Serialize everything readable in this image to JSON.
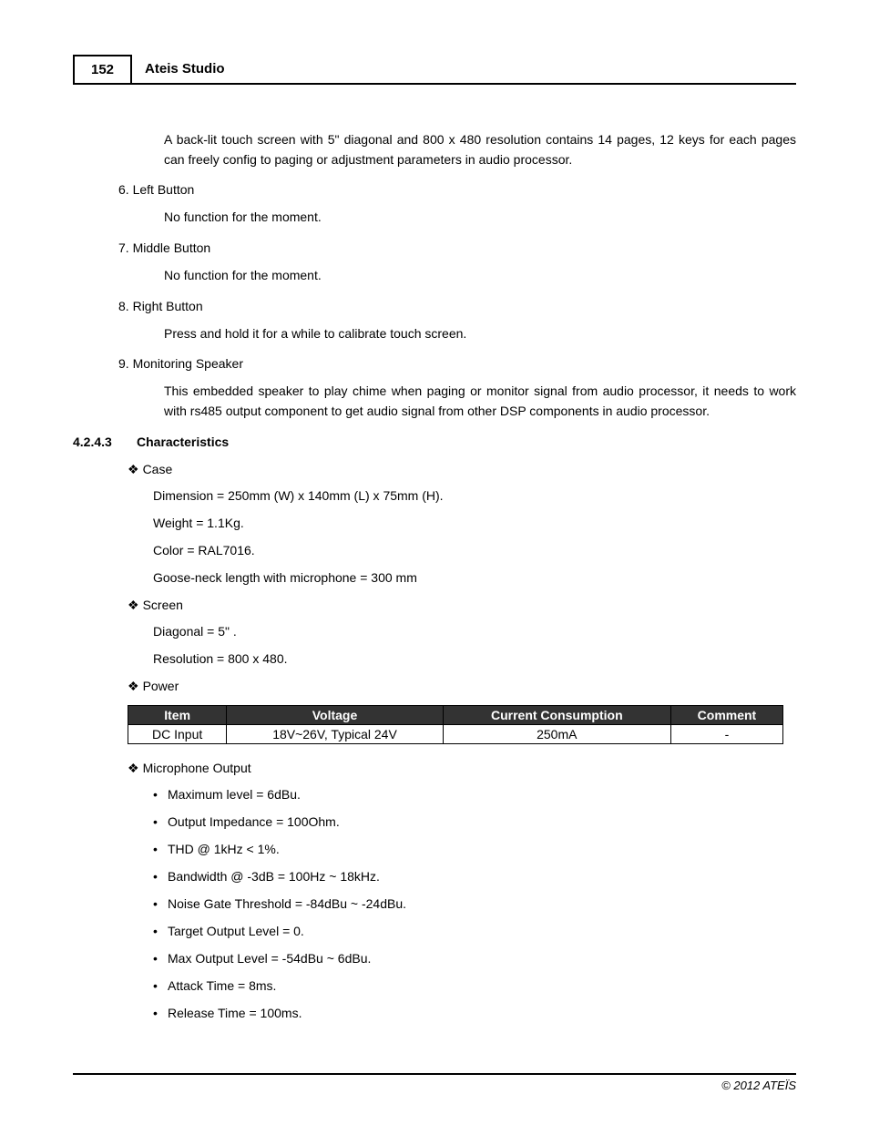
{
  "header": {
    "page_number": "152",
    "title": "Ateis Studio"
  },
  "intro_para": "A back-lit touch screen with 5\" diagonal and 800 x 480 resolution contains 14 pages, 12 keys for each pages can freely config to paging or adjustment parameters in audio processor.",
  "numbered_items": [
    {
      "num": "6.",
      "title": "Left Button",
      "body": "No function for the moment."
    },
    {
      "num": "7.",
      "title": "Middle Button",
      "body": "No function for the moment."
    },
    {
      "num": "8.",
      "title": "Right Button",
      "body": "Press and hold it for a while to calibrate touch screen."
    },
    {
      "num": "9.",
      "title": "Monitoring Speaker",
      "body": "This embedded speaker to play chime when paging or monitor signal from audio processor, it needs to work with rs485 output component to get audio signal from other DSP components in audio processor."
    }
  ],
  "section": {
    "number": "4.2.4.3",
    "title": "Characteristics"
  },
  "case_section": {
    "label": "Case",
    "lines": [
      "Dimension = 250mm (W) x 140mm (L) x 75mm (H).",
      "Weight = 1.1Kg.",
      "Color = RAL7016.",
      "Goose-neck length with microphone = 300 mm"
    ]
  },
  "screen_section": {
    "label": "Screen",
    "lines": [
      "Diagonal = 5\" .",
      "Resolution = 800 x 480."
    ]
  },
  "power_section": {
    "label": "Power",
    "table": {
      "columns": [
        "Item",
        "Voltage",
        "Current Consumption",
        "Comment"
      ],
      "rows": [
        [
          "DC Input",
          "18V~26V, Typical 24V",
          "250mA",
          "-"
        ]
      ],
      "header_bg": "#333333",
      "header_fg": "#ffffff",
      "border_color": "#000000"
    }
  },
  "mic_section": {
    "label": "Microphone Output",
    "items": [
      "Maximum level = 6dBu.",
      "Output Impedance = 100Ohm.",
      "THD @ 1kHz < 1%.",
      "Bandwidth @ -3dB = 100Hz ~ 18kHz.",
      "Noise Gate Threshold = -84dBu ~ -24dBu.",
      "Target Output Level = 0.",
      "Max Output Level = -54dBu ~ 6dBu.",
      "Attack Time = 8ms.",
      "Release Time = 100ms."
    ]
  },
  "footer": "© 2012 ATEÏS"
}
